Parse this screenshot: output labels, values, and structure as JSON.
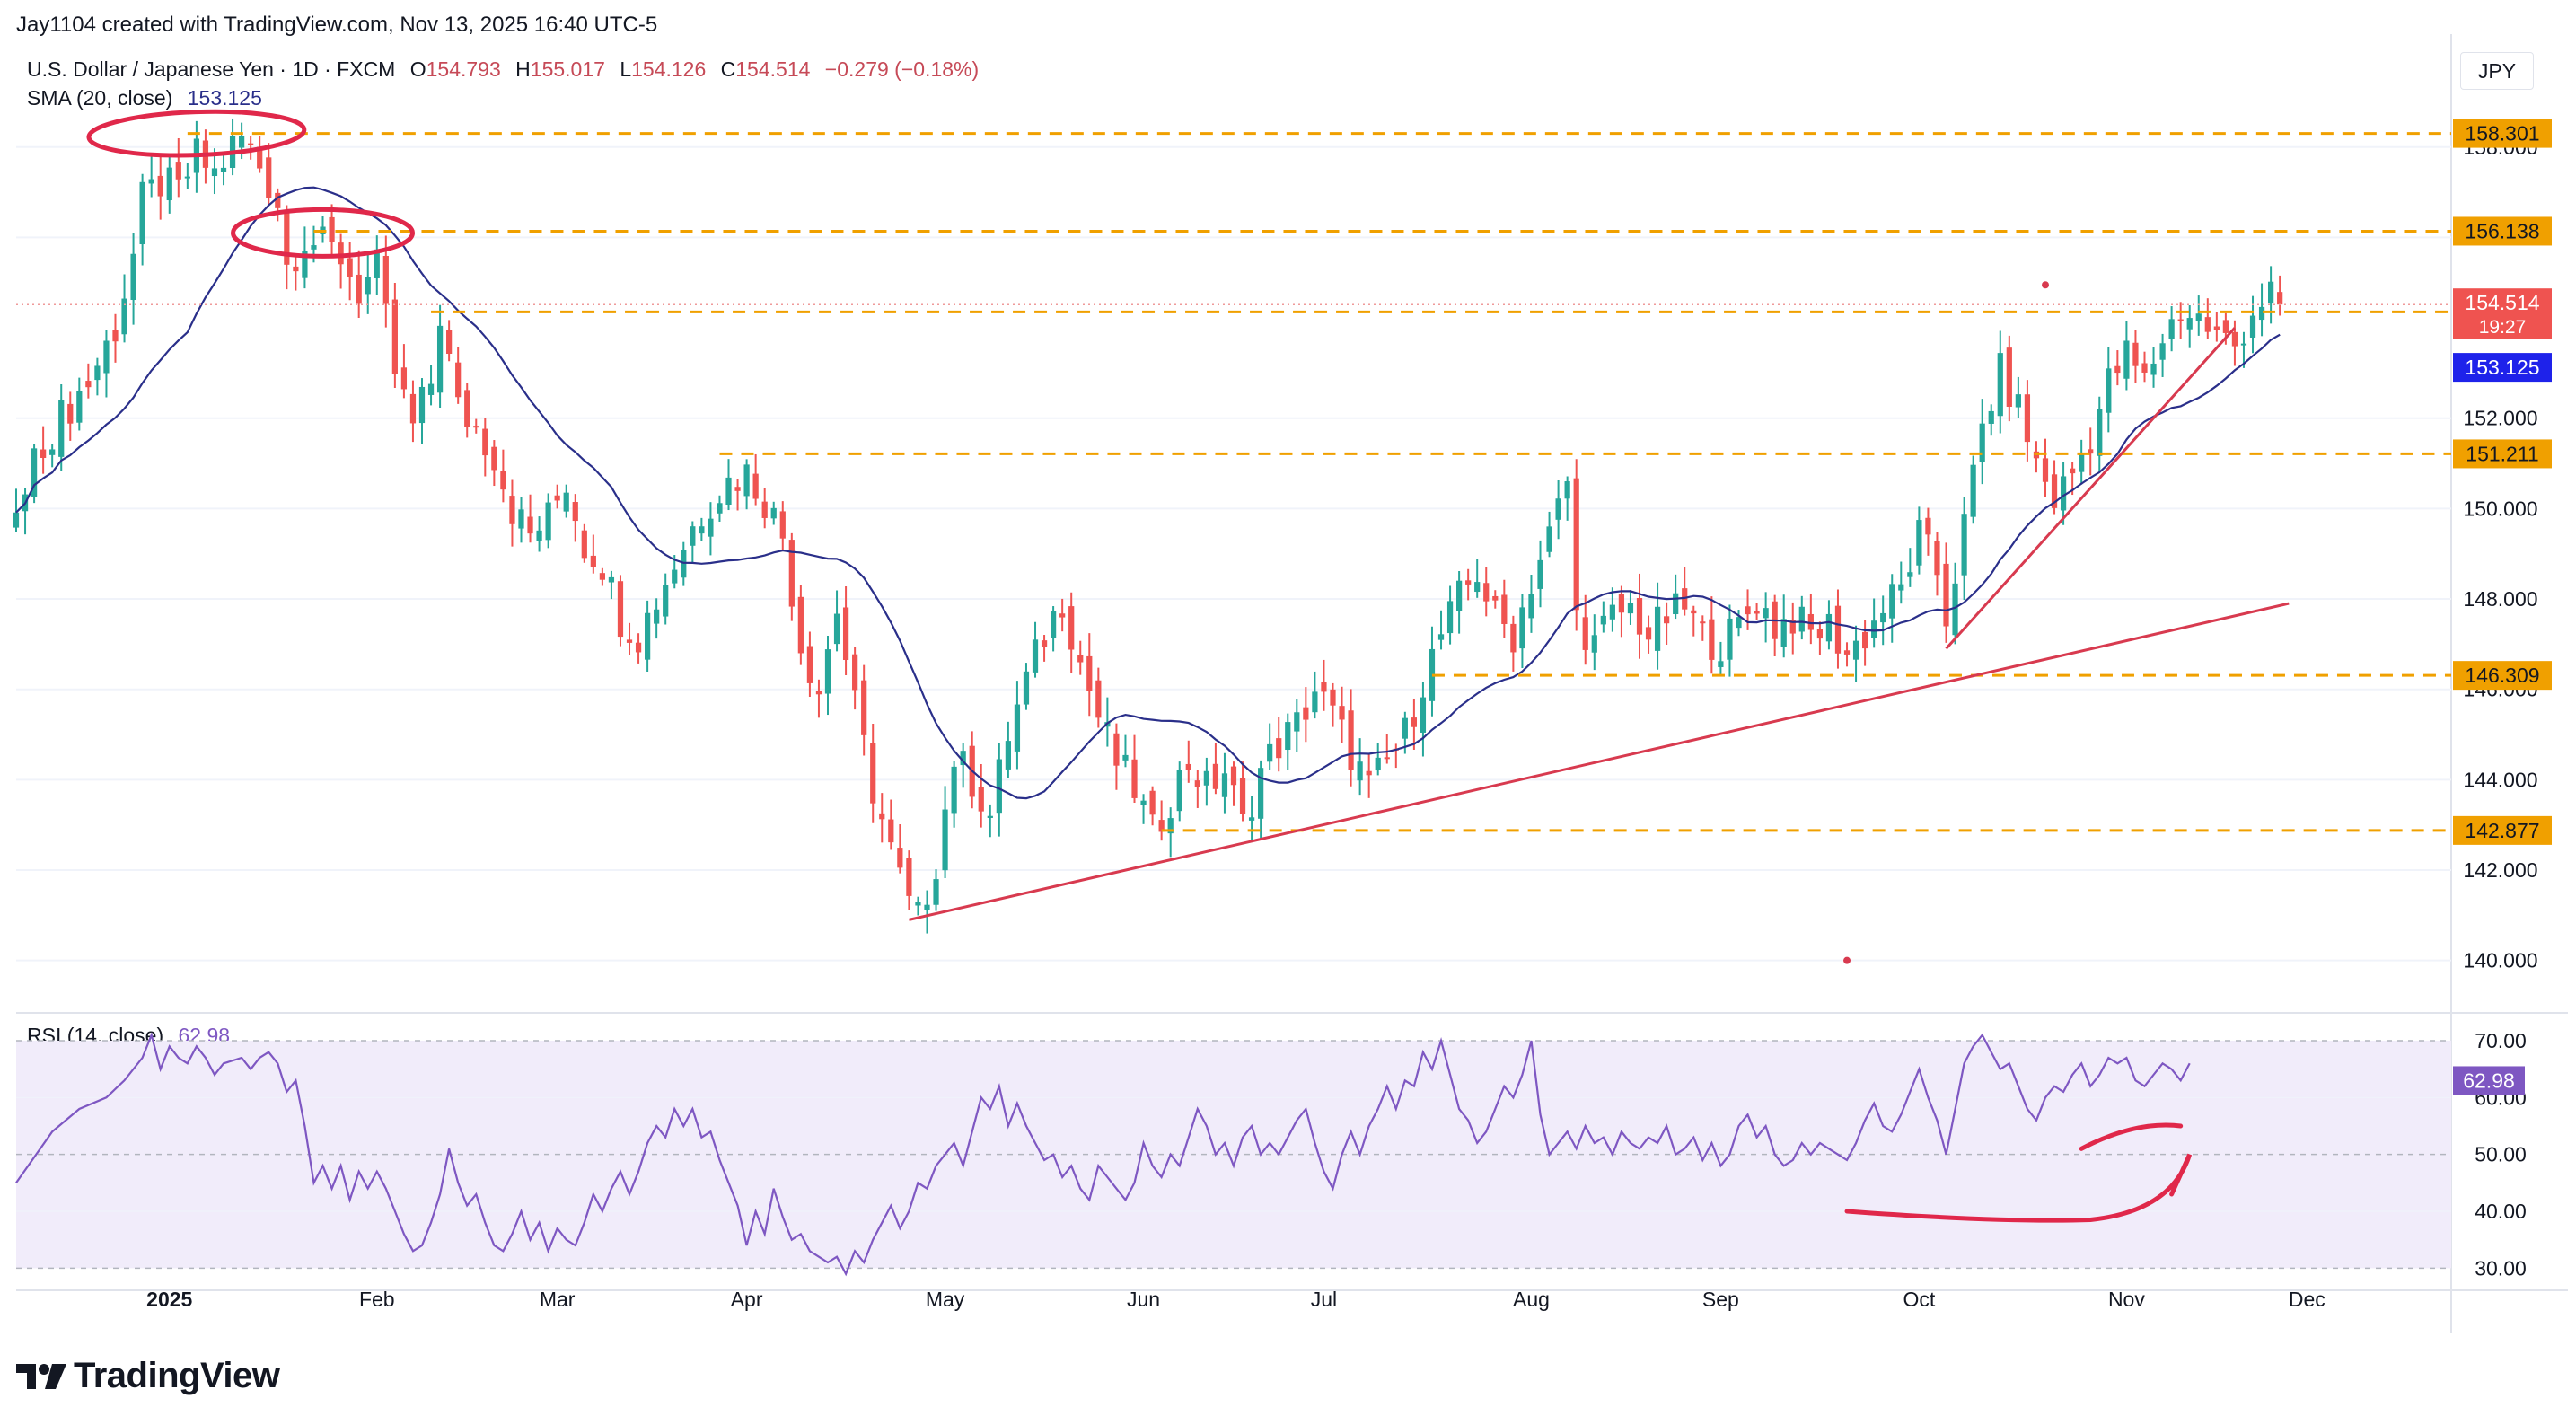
{
  "header": {
    "author_line": "Jay1104 created with TradingView.com, Nov 13, 2025 16:40 UTC-5"
  },
  "legend": {
    "symbol": "U.S. Dollar / Japanese Yen · 1D · FXCM",
    "o_label": "O",
    "o": "154.793",
    "h_label": "H",
    "h": "155.017",
    "l_label": "L",
    "l": "154.126",
    "c_label": "C",
    "c": "154.514",
    "change": "−0.279 (−0.18%)",
    "sma_label": "SMA (20, close)",
    "sma_value": "153.125",
    "rsi_label": "RSI (14, close)",
    "rsi_value": "62.98"
  },
  "currency": "JPY",
  "brand": {
    "name": "TradingView",
    "icon": "tradingview-logo-icon"
  },
  "colors": {
    "up": "#26a69a",
    "down": "#ef5350",
    "sma": "#2a2f8a",
    "rsi": "#7e57c2",
    "level": "#f0a000",
    "trend": "#d83a4f",
    "annotation": "#e0284a",
    "rsi_band": "#f1ecfa"
  },
  "chart_data": {
    "type": "candlestick",
    "ylim": [
      139,
      160.3
    ],
    "price_ticks": [
      140,
      142,
      144,
      146,
      148,
      150,
      152,
      156,
      158
    ],
    "price_tick_labels": [
      "140.000",
      "142.000",
      "144.000",
      "146.000",
      "148.000",
      "150.000",
      "152.000",
      "156.000",
      "158.000"
    ],
    "x_axis_labels": [
      {
        "text": "2025",
        "t": 12,
        "bold": true
      },
      {
        "text": "Feb",
        "t": 35
      },
      {
        "text": "Mar",
        "t": 55
      },
      {
        "text": "Apr",
        "t": 76
      },
      {
        "text": "May",
        "t": 98
      },
      {
        "text": "Jun",
        "t": 120
      },
      {
        "text": "Jul",
        "t": 140
      },
      {
        "text": "Aug",
        "t": 163
      },
      {
        "text": "Sep",
        "t": 184
      },
      {
        "text": "Oct",
        "t": 206
      },
      {
        "text": "Nov",
        "t": 229
      },
      {
        "text": "Dec",
        "t": 249
      }
    ],
    "x_range": [
      -5,
      265
    ],
    "levels": [
      {
        "label": "158.301",
        "price": 158.301,
        "t0": 14
      },
      {
        "label": "156.138",
        "price": 156.138,
        "t0": 28
      },
      {
        "label": "154.352",
        "price": 154.352,
        "t0": 41
      },
      {
        "label": "151.211",
        "price": 151.211,
        "t0": 73
      },
      {
        "label": "146.309",
        "price": 146.309,
        "t0": 152
      },
      {
        "label": "142.877",
        "price": 142.877,
        "t0": 122
      }
    ],
    "current_price": {
      "label": "154.514",
      "price": 154.514,
      "countdown": "19:27"
    },
    "sma_label_price": {
      "label": "153.125",
      "price": 153.125
    },
    "trendlines": [
      {
        "t1": 94,
        "p1": 140.9,
        "t2": 247,
        "p2": 147.9
      },
      {
        "t1": 209,
        "p1": 146.9,
        "t2": 241,
        "p2": 154.0
      }
    ],
    "markers": [
      {
        "t": 220,
        "price": 154.95
      },
      {
        "t": 198,
        "price": 140.0
      }
    ],
    "rsi": {
      "ylim": [
        28,
        73
      ],
      "ticks": [
        30,
        40,
        50,
        60,
        70
      ],
      "tick_labels": [
        "30.00",
        "40.00",
        "50.00",
        "60.00",
        "70.00"
      ],
      "band": [
        30,
        70
      ],
      "values": [
        46,
        50,
        55,
        58,
        61,
        62,
        66,
        65,
        70,
        67,
        64,
        67,
        69,
        66,
        63,
        64,
        67,
        65,
        67,
        69,
        65,
        62,
        64,
        60,
        48,
        55,
        50,
        46,
        52,
        48,
        44,
        50,
        47,
        49,
        43,
        38,
        32,
        33,
        40,
        46,
        50,
        44,
        40,
        38,
        34,
        33,
        39,
        41,
        38,
        42,
        36,
        33,
        36,
        39,
        35,
        31,
        35,
        40,
        42,
        44,
        48,
        52,
        50,
        55,
        56,
        51,
        49,
        58,
        60,
        56,
        54,
        60,
        56,
        51,
        44,
        40,
        34,
        37,
        45,
        48,
        45,
        42,
        35,
        33,
        36,
        32,
        30,
        31,
        35,
        40,
        45,
        43,
        47,
        50,
        52,
        50,
        51,
        53,
        55,
        58,
        57,
        54,
        52,
        54,
        53,
        55,
        56,
        51,
        48,
        47,
        49,
        52,
        50,
        54,
        56,
        53,
        51,
        52,
        54,
        55,
        57,
        55,
        52,
        53,
        55,
        52,
        54,
        56,
        58,
        54,
        52,
        51,
        48,
        50,
        52,
        55,
        57,
        59,
        61,
        63,
        62,
        65,
        67,
        62,
        58,
        56,
        60,
        62,
        64,
        66,
        68,
        70,
        65,
        55,
        53,
        52,
        54,
        56,
        55,
        52,
        54,
        53,
        52,
        53,
        55,
        54,
        52,
        53,
        54,
        56,
        55,
        57,
        58,
        60,
        62,
        60,
        58,
        56,
        57,
        59,
        62,
        63,
        64,
        63,
        62,
        61,
        62,
        64,
        65,
        66,
        67,
        66,
        65,
        64,
        66,
        65,
        63,
        60,
        62,
        61,
        60,
        59,
        62,
        64,
        66,
        65,
        63,
        60,
        59,
        61,
        63,
        62,
        64,
        66,
        68,
        66,
        65,
        67,
        68,
        66,
        64,
        63,
        62,
        63,
        62,
        64,
        65,
        63
      ]
    },
    "rsi_points": [
      [
        -5,
        45
      ],
      [
        -1,
        54
      ],
      [
        2,
        58
      ],
      [
        5,
        60
      ],
      [
        7,
        63
      ],
      [
        9,
        67
      ],
      [
        10,
        71
      ],
      [
        11,
        65
      ],
      [
        12,
        69
      ],
      [
        13,
        67
      ],
      [
        14,
        66
      ],
      [
        15,
        69
      ],
      [
        16,
        67
      ],
      [
        17,
        64
      ],
      [
        18,
        66
      ],
      [
        20,
        67
      ],
      [
        21,
        65
      ],
      [
        22,
        67
      ],
      [
        23,
        68
      ],
      [
        24,
        66
      ],
      [
        25,
        61
      ],
      [
        26,
        63
      ],
      [
        27,
        55
      ],
      [
        28,
        45
      ],
      [
        29,
        48
      ],
      [
        30,
        44
      ],
      [
        31,
        48
      ],
      [
        32,
        42
      ],
      [
        33,
        47
      ],
      [
        34,
        44
      ],
      [
        35,
        47
      ],
      [
        36,
        44
      ],
      [
        37,
        40
      ],
      [
        38,
        36
      ],
      [
        39,
        33
      ],
      [
        40,
        34
      ],
      [
        41,
        38
      ],
      [
        42,
        43
      ],
      [
        43,
        51
      ],
      [
        44,
        45
      ],
      [
        45,
        41
      ],
      [
        46,
        43
      ],
      [
        47,
        38
      ],
      [
        48,
        34
      ],
      [
        49,
        33
      ],
      [
        50,
        36
      ],
      [
        51,
        40
      ],
      [
        52,
        35
      ],
      [
        53,
        38
      ],
      [
        54,
        33
      ],
      [
        55,
        37
      ],
      [
        56,
        35
      ],
      [
        57,
        34
      ],
      [
        58,
        38
      ],
      [
        59,
        43
      ],
      [
        60,
        40
      ],
      [
        61,
        44
      ],
      [
        62,
        47
      ],
      [
        63,
        43
      ],
      [
        64,
        47
      ],
      [
        65,
        52
      ],
      [
        66,
        55
      ],
      [
        67,
        53
      ],
      [
        68,
        58
      ],
      [
        69,
        55
      ],
      [
        70,
        58
      ],
      [
        71,
        53
      ],
      [
        72,
        54
      ],
      [
        73,
        49
      ],
      [
        74,
        45
      ],
      [
        75,
        41
      ],
      [
        76,
        34
      ],
      [
        77,
        40
      ],
      [
        78,
        36
      ],
      [
        79,
        44
      ],
      [
        80,
        39
      ],
      [
        81,
        35
      ],
      [
        82,
        36
      ],
      [
        83,
        33
      ],
      [
        84,
        32
      ],
      [
        85,
        31
      ],
      [
        86,
        32
      ],
      [
        87,
        29
      ],
      [
        88,
        33
      ],
      [
        89,
        31
      ],
      [
        90,
        35
      ],
      [
        91,
        38
      ],
      [
        92,
        41
      ],
      [
        93,
        37
      ],
      [
        94,
        40
      ],
      [
        95,
        45
      ],
      [
        96,
        44
      ],
      [
        97,
        48
      ],
      [
        98,
        50
      ],
      [
        99,
        52
      ],
      [
        100,
        48
      ],
      [
        101,
        54
      ],
      [
        102,
        60
      ],
      [
        103,
        58
      ],
      [
        104,
        62
      ],
      [
        105,
        55
      ],
      [
        106,
        59
      ],
      [
        107,
        55
      ],
      [
        108,
        52
      ],
      [
        109,
        49
      ],
      [
        110,
        50
      ],
      [
        111,
        46
      ],
      [
        112,
        48
      ],
      [
        113,
        44
      ],
      [
        114,
        42
      ],
      [
        115,
        48
      ],
      [
        116,
        46
      ],
      [
        117,
        44
      ],
      [
        118,
        42
      ],
      [
        119,
        45
      ],
      [
        120,
        52
      ],
      [
        121,
        48
      ],
      [
        122,
        46
      ],
      [
        123,
        50
      ],
      [
        124,
        48
      ],
      [
        125,
        53
      ],
      [
        126,
        58
      ],
      [
        127,
        55
      ],
      [
        128,
        50
      ],
      [
        129,
        52
      ],
      [
        130,
        48
      ],
      [
        131,
        53
      ],
      [
        132,
        55
      ],
      [
        133,
        50
      ],
      [
        134,
        52
      ],
      [
        135,
        50
      ],
      [
        136,
        53
      ],
      [
        137,
        56
      ],
      [
        138,
        58
      ],
      [
        139,
        52
      ],
      [
        140,
        47
      ],
      [
        141,
        44
      ],
      [
        142,
        50
      ],
      [
        143,
        54
      ],
      [
        144,
        50
      ],
      [
        145,
        55
      ],
      [
        146,
        58
      ],
      [
        147,
        62
      ],
      [
        148,
        58
      ],
      [
        149,
        63
      ],
      [
        150,
        62
      ],
      [
        151,
        68
      ],
      [
        152,
        65
      ],
      [
        153,
        70
      ],
      [
        154,
        64
      ],
      [
        155,
        58
      ],
      [
        156,
        56
      ],
      [
        157,
        52
      ],
      [
        158,
        54
      ],
      [
        159,
        58
      ],
      [
        160,
        62
      ],
      [
        161,
        60
      ],
      [
        162,
        64
      ],
      [
        163,
        70
      ],
      [
        164,
        57
      ],
      [
        165,
        50
      ],
      [
        166,
        52
      ],
      [
        167,
        54
      ],
      [
        168,
        51
      ],
      [
        169,
        55
      ],
      [
        170,
        52
      ],
      [
        171,
        53
      ],
      [
        172,
        50
      ],
      [
        173,
        54
      ],
      [
        174,
        52
      ],
      [
        175,
        51
      ],
      [
        176,
        53
      ],
      [
        177,
        52
      ],
      [
        178,
        55
      ],
      [
        179,
        50
      ],
      [
        180,
        51
      ],
      [
        181,
        53
      ],
      [
        182,
        49
      ],
      [
        183,
        52
      ],
      [
        184,
        48
      ],
      [
        185,
        50
      ],
      [
        186,
        55
      ],
      [
        187,
        57
      ],
      [
        188,
        53
      ],
      [
        189,
        55
      ],
      [
        190,
        50
      ],
      [
        191,
        48
      ],
      [
        192,
        49
      ],
      [
        193,
        52
      ],
      [
        194,
        50
      ],
      [
        195,
        52
      ],
      [
        196,
        51
      ],
      [
        197,
        50
      ],
      [
        198,
        49
      ],
      [
        199,
        52
      ],
      [
        200,
        56
      ],
      [
        201,
        59
      ],
      [
        202,
        55
      ],
      [
        203,
        54
      ],
      [
        204,
        57
      ],
      [
        205,
        61
      ],
      [
        206,
        65
      ],
      [
        207,
        60
      ],
      [
        208,
        56
      ],
      [
        209,
        50
      ],
      [
        210,
        58
      ],
      [
        211,
        66
      ],
      [
        212,
        69
      ],
      [
        213,
        71
      ],
      [
        214,
        68
      ],
      [
        215,
        65
      ],
      [
        216,
        66
      ],
      [
        217,
        62
      ],
      [
        218,
        58
      ],
      [
        219,
        56
      ],
      [
        220,
        60
      ],
      [
        221,
        62
      ],
      [
        222,
        61
      ],
      [
        223,
        64
      ],
      [
        224,
        66
      ],
      [
        225,
        62
      ],
      [
        226,
        64
      ],
      [
        227,
        67
      ],
      [
        228,
        66
      ],
      [
        229,
        67
      ],
      [
        230,
        63
      ],
      [
        231,
        62
      ],
      [
        232,
        64
      ],
      [
        233,
        66
      ],
      [
        234,
        65
      ],
      [
        235,
        63
      ],
      [
        236,
        66
      ]
    ],
    "candles": []
  }
}
